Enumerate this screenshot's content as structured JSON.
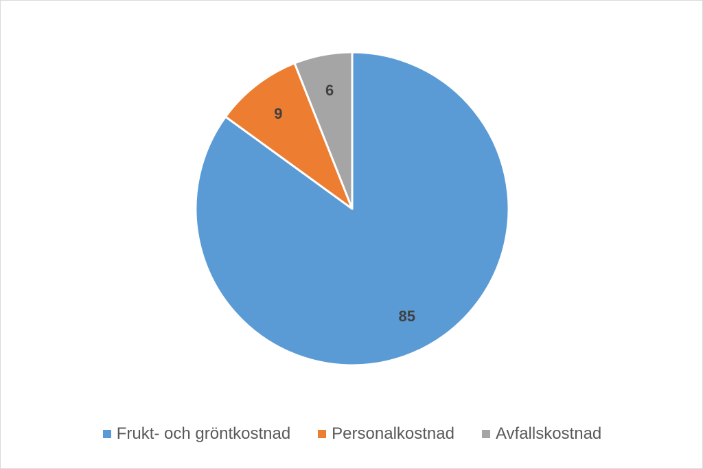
{
  "chart_data": {
    "type": "pie",
    "categories": [
      "Frukt- och gröntkostnad",
      "Personalkostnad",
      "Avfallskostnad"
    ],
    "values": [
      85,
      9,
      6
    ],
    "data_labels": [
      "85",
      "9",
      "6"
    ],
    "colors": [
      "#5b9bd5",
      "#ed7d31",
      "#a5a5a5"
    ],
    "legend_position": "bottom",
    "start_angle_deg": 0,
    "direction": "clockwise"
  }
}
